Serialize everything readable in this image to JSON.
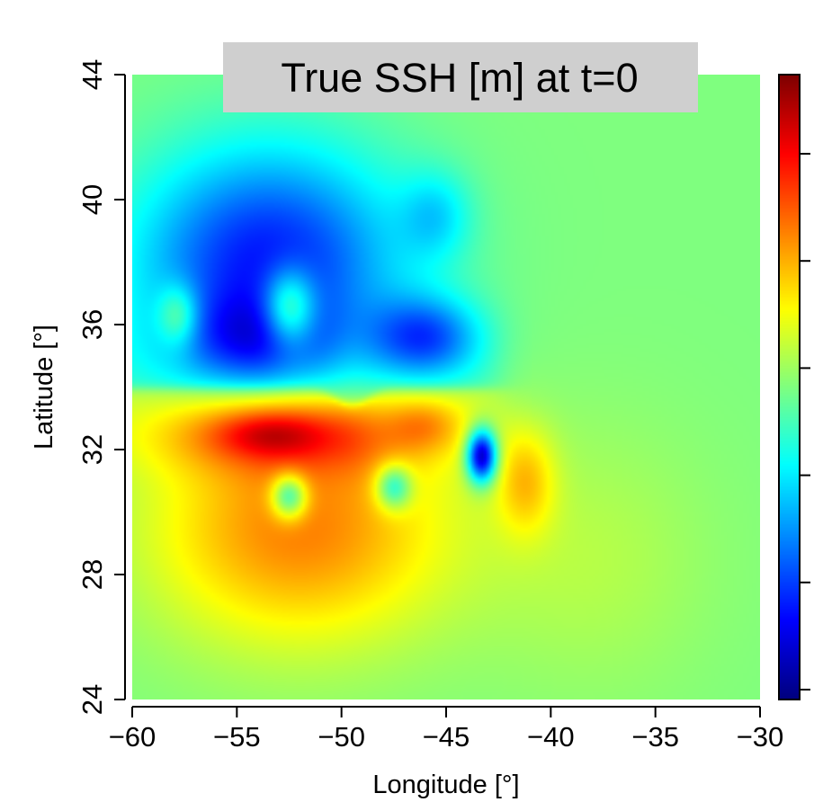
{
  "chart_data": {
    "type": "heatmap",
    "title": "True SSH [m] at t=0",
    "xlabel": "Longitude [°]",
    "ylabel": "Latitude [°]",
    "xlim": [
      -60,
      -30
    ],
    "ylim": [
      24,
      44
    ],
    "x_ticks": [
      "−60",
      "−55",
      "−50",
      "−45",
      "−40",
      "−35",
      "−30"
    ],
    "y_ticks": [
      "24",
      "28",
      "32",
      "36",
      "40",
      "44"
    ],
    "x_tick_values": [
      -60,
      -55,
      -50,
      -45,
      -40,
      -35,
      -30
    ],
    "y_tick_values": [
      24,
      28,
      32,
      36,
      40,
      44
    ],
    "colorbar": {
      "colormap": "jet",
      "colors": [
        "#00007f",
        "#0000ff",
        "#007fff",
        "#00ffff",
        "#7fff7f",
        "#ffff00",
        "#ff7f00",
        "#ff0000",
        "#7f0000"
      ],
      "tick_count": 6
    },
    "background_value": 0.5,
    "features": [
      {
        "name": "northern cold region",
        "lon": -53.5,
        "lat": 38.0,
        "sigma_lon": 4.5,
        "sigma_lat": 2.6,
        "value": -0.36
      },
      {
        "name": "cold core",
        "lon": -54.0,
        "lat": 35.5,
        "sigma_lon": 2.5,
        "sigma_lat": 1.0,
        "value": -0.18
      },
      {
        "name": "cold eddy",
        "lon": -46.0,
        "lat": 35.6,
        "sigma_lon": 1.8,
        "sigma_lat": 0.9,
        "value": -0.25
      },
      {
        "name": "cold patch",
        "lon": -45.5,
        "lat": 39.5,
        "sigma_lon": 1.2,
        "sigma_lat": 1.0,
        "value": -0.12
      },
      {
        "name": "warm center",
        "lon": -52.5,
        "lat": 36.5,
        "sigma_lon": 0.9,
        "sigma_lat": 0.9,
        "value": 0.3
      },
      {
        "name": "warm center",
        "lon": -57.8,
        "lat": 36.3,
        "sigma_lon": 0.7,
        "sigma_lat": 0.7,
        "value": 0.18
      },
      {
        "name": "southern warm region",
        "lon": -52.0,
        "lat": 29.5,
        "sigma_lon": 5.0,
        "sigma_lat": 2.6,
        "value": 0.25
      },
      {
        "name": "warm ridge",
        "lon": -52.5,
        "lat": 32.5,
        "sigma_lon": 4.5,
        "sigma_lat": 0.9,
        "value": 0.2
      },
      {
        "name": "warm core",
        "lon": -53.5,
        "lat": 32.5,
        "sigma_lon": 1.8,
        "sigma_lat": 0.5,
        "value": 0.12
      },
      {
        "name": "warm core",
        "lon": -46.0,
        "lat": 32.8,
        "sigma_lon": 1.2,
        "sigma_lat": 0.6,
        "value": 0.1
      },
      {
        "name": "cold eddy",
        "lon": -43.3,
        "lat": 31.8,
        "sigma_lon": 0.5,
        "sigma_lat": 0.6,
        "value": -0.52
      },
      {
        "name": "cool eddy",
        "lon": -52.5,
        "lat": 30.5,
        "sigma_lon": 0.6,
        "sigma_lat": 0.5,
        "value": -0.28
      },
      {
        "name": "cool eddy",
        "lon": -47.5,
        "lat": 30.8,
        "sigma_lon": 0.6,
        "sigma_lat": 0.5,
        "value": -0.24
      },
      {
        "name": "warm patch",
        "lon": -41.2,
        "lat": 31.0,
        "sigma_lon": 1.0,
        "sigma_lat": 1.2,
        "value": 0.15
      },
      {
        "name": "eastern plateau",
        "lon": -38.0,
        "lat": 28.5,
        "sigma_lon": 4.0,
        "sigma_lat": 3.0,
        "value": 0.05
      }
    ],
    "jet_front": {
      "lat": 33.95,
      "lon_start": -60,
      "lon_end": -42.5,
      "meander_lon": -49.5,
      "meander_amp": 0.5
    }
  }
}
